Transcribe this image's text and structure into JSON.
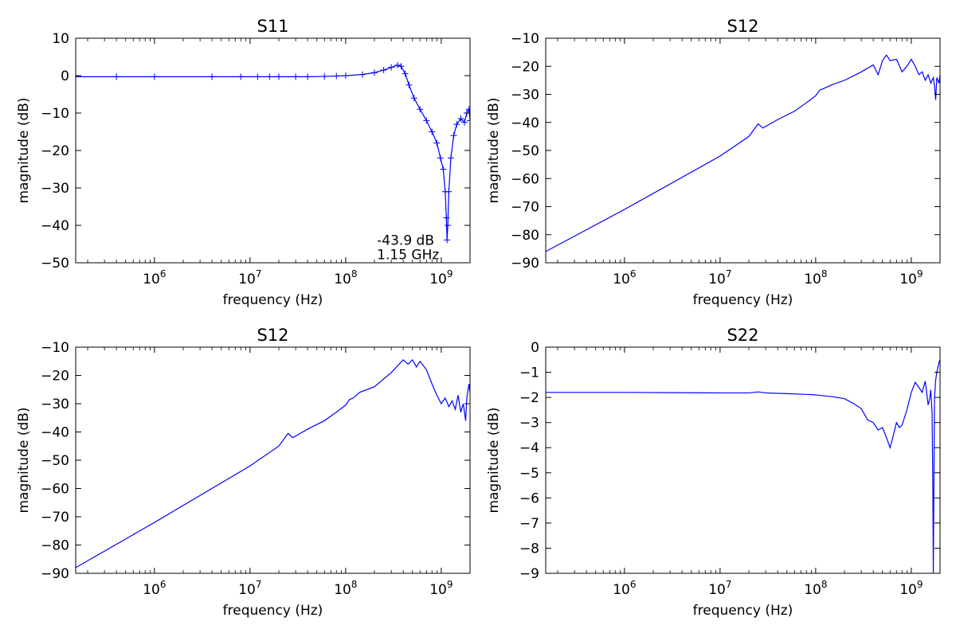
{
  "chart_data": [
    {
      "type": "line",
      "title": "S11",
      "xlabel": "frequency (Hz)",
      "ylabel": "magnitude (dB)",
      "xscale": "log",
      "xlim": [
        150000,
        2000000000
      ],
      "ylim": [
        -50,
        10
      ],
      "yticks": [
        10,
        0,
        -10,
        -20,
        -30,
        -40,
        -50
      ],
      "xticks": [
        1000000,
        10000000,
        100000000,
        1000000000
      ],
      "xtick_labels": [
        "10^6",
        "10^7",
        "10^8",
        "10^9"
      ],
      "marker": "plus",
      "line_color": "#0000ff",
      "grid": false,
      "series": [
        {
          "x": [
            150000,
            400000,
            1000000,
            4000000,
            8000000,
            12000000,
            16000000,
            20000000,
            30000000,
            40000000,
            60000000,
            80000000,
            100000000,
            150000000,
            200000000,
            250000000,
            300000000,
            350000000,
            380000000,
            420000000,
            460000000,
            520000000,
            600000000,
            700000000,
            800000000,
            900000000,
            980000000,
            1050000000,
            1100000000,
            1130000000,
            1150000000,
            1170000000,
            1200000000,
            1260000000,
            1350000000,
            1450000000,
            1600000000,
            1750000000,
            1850000000,
            1950000000,
            2000000000
          ],
          "y": [
            -0.3,
            -0.3,
            -0.3,
            -0.3,
            -0.3,
            -0.3,
            -0.3,
            -0.3,
            -0.3,
            -0.3,
            -0.2,
            -0.1,
            0.0,
            0.3,
            0.8,
            1.5,
            2.2,
            2.8,
            2.5,
            0.5,
            -2.5,
            -6.0,
            -9.0,
            -12.0,
            -15.0,
            -18.0,
            -22.0,
            -25.0,
            -31.0,
            -38.0,
            -43.9,
            -40.0,
            -31.0,
            -22.0,
            -16.0,
            -13.0,
            -11.5,
            -12.5,
            -10.0,
            -9.0,
            -12.0
          ]
        }
      ],
      "annotations": [
        {
          "text": "-43.9 dB",
          "x": 1150000000,
          "y": -43.9
        },
        {
          "text": "1.15 GHz",
          "x": 1150000000,
          "y": -43.9
        }
      ]
    },
    {
      "type": "line",
      "title": "S12",
      "xlabel": "frequency (Hz)",
      "ylabel": "magnitude (dB)",
      "xscale": "log",
      "xlim": [
        150000,
        2000000000
      ],
      "ylim": [
        -90,
        -10
      ],
      "yticks": [
        -10,
        -20,
        -30,
        -40,
        -50,
        -60,
        -70,
        -80,
        -90
      ],
      "xticks": [
        1000000,
        10000000,
        100000000,
        1000000000
      ],
      "xtick_labels": [
        "10^6",
        "10^7",
        "10^8",
        "10^9"
      ],
      "line_color": "#0000ff",
      "grid": false,
      "series": [
        {
          "x": [
            150000,
            1000000,
            10000000,
            20000000,
            25000000,
            28000000,
            40000000,
            60000000,
            80000000,
            100000000,
            110000000,
            120000000,
            150000000,
            200000000,
            300000000,
            400000000,
            450000000,
            500000000,
            550000000,
            600000000,
            700000000,
            800000000,
            900000000,
            1000000000,
            1100000000,
            1200000000,
            1300000000,
            1400000000,
            1500000000,
            1600000000,
            1700000000,
            1750000000,
            1800000000,
            1850000000,
            1950000000,
            2000000000
          ],
          "y": [
            -86,
            -71,
            -52,
            -45,
            -40.5,
            -42,
            -39,
            -36,
            -33,
            -30.5,
            -28.5,
            -28,
            -26.5,
            -25,
            -22,
            -19.5,
            -23,
            -18,
            -16,
            -18,
            -17.5,
            -22,
            -20,
            -17.5,
            -20,
            -23,
            -22,
            -25,
            -23,
            -26,
            -24,
            -27,
            -32,
            -24,
            -26,
            -23
          ]
        }
      ]
    },
    {
      "type": "line",
      "title": "S12",
      "xlabel": "frequency (Hz)",
      "ylabel": "magnitude (dB)",
      "xscale": "log",
      "xlim": [
        150000,
        2000000000
      ],
      "ylim": [
        -90,
        -10
      ],
      "yticks": [
        -10,
        -20,
        -30,
        -40,
        -50,
        -60,
        -70,
        -80,
        -90
      ],
      "xticks": [
        1000000,
        10000000,
        100000000,
        1000000000
      ],
      "xtick_labels": [
        "10^6",
        "10^7",
        "10^8",
        "10^9"
      ],
      "line_color": "#0000ff",
      "grid": false,
      "series": [
        {
          "x": [
            150000,
            1000000,
            10000000,
            20000000,
            25000000,
            28000000,
            40000000,
            60000000,
            80000000,
            100000000,
            110000000,
            120000000,
            140000000,
            200000000,
            300000000,
            400000000,
            450000000,
            500000000,
            550000000,
            600000000,
            700000000,
            800000000,
            900000000,
            1000000000,
            1100000000,
            1200000000,
            1300000000,
            1400000000,
            1500000000,
            1600000000,
            1700000000,
            1750000000,
            1800000000,
            1850000000,
            1950000000,
            2000000000
          ],
          "y": [
            -88,
            -72,
            -52,
            -45,
            -40.5,
            -42,
            -39,
            -36,
            -33,
            -30.5,
            -28.5,
            -28,
            -26,
            -24,
            -19,
            -14.5,
            -16,
            -14.5,
            -17,
            -15,
            -18,
            -23,
            -27,
            -30,
            -28,
            -31,
            -29,
            -32,
            -27,
            -33,
            -30,
            -33,
            -36,
            -28,
            -23,
            -26
          ]
        }
      ]
    },
    {
      "type": "line",
      "title": "S22",
      "xlabel": "frequency (Hz)",
      "ylabel": "magnitude (dB)",
      "xscale": "log",
      "xlim": [
        150000,
        2000000000
      ],
      "ylim": [
        -9,
        0
      ],
      "yticks": [
        0,
        -1,
        -2,
        -3,
        -4,
        -5,
        -6,
        -7,
        -8,
        -9
      ],
      "xticks": [
        1000000,
        10000000,
        100000000,
        1000000000
      ],
      "xtick_labels": [
        "10^6",
        "10^7",
        "10^8",
        "10^9"
      ],
      "line_color": "#0000ff",
      "grid": false,
      "series": [
        {
          "x": [
            150000,
            1000000,
            10000000,
            20000000,
            25000000,
            30000000,
            50000000,
            80000000,
            100000000,
            150000000,
            200000000,
            250000000,
            300000000,
            350000000,
            400000000,
            450000000,
            500000000,
            550000000,
            600000000,
            650000000,
            700000000,
            750000000,
            800000000,
            900000000,
            1000000000,
            1100000000,
            1200000000,
            1300000000,
            1400000000,
            1500000000,
            1550000000,
            1600000000,
            1650000000,
            1680000000,
            1700000000,
            1720000000,
            1750000000,
            1800000000,
            1850000000,
            1900000000,
            1950000000,
            2000000000
          ],
          "y": [
            -1.8,
            -1.8,
            -1.82,
            -1.82,
            -1.78,
            -1.82,
            -1.85,
            -1.88,
            -1.9,
            -1.97,
            -2.05,
            -2.25,
            -2.45,
            -2.9,
            -3.0,
            -3.3,
            -3.2,
            -3.6,
            -4.0,
            -3.5,
            -3.0,
            -3.2,
            -3.1,
            -2.5,
            -1.8,
            -1.4,
            -1.6,
            -1.8,
            -1.35,
            -2.3,
            -2.1,
            -1.7,
            -2.6,
            -5.5,
            -9.0,
            -6.0,
            -2.0,
            -1.3,
            -1.0,
            -0.8,
            -0.6,
            -0.5
          ]
        }
      ]
    }
  ]
}
